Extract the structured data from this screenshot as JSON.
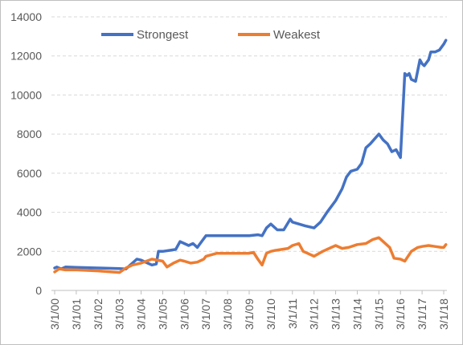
{
  "chart_data": {
    "type": "line",
    "title": "",
    "xlabel": "",
    "ylabel": "",
    "ylim": [
      0,
      14000
    ],
    "yticks": [
      0,
      2000,
      4000,
      6000,
      8000,
      10000,
      12000,
      14000
    ],
    "grid": "horizontal dashed",
    "legend_position": "top",
    "x_tick_labels": [
      "3/1/00",
      "3/1/01",
      "3/1/02",
      "3/1/03",
      "3/1/04",
      "3/1/05",
      "3/1/06",
      "3/1/07",
      "3/1/08",
      "3/1/09",
      "3/1/10",
      "3/1/11",
      "3/1/12",
      "3/1/13",
      "3/1/14",
      "3/1/15",
      "3/1/16",
      "3/1/17",
      "3/1/18"
    ],
    "x_unit": "years since 3/1/00",
    "series": [
      {
        "name": "Strongest",
        "color": "#4472c4",
        "x": [
          0,
          0.1,
          0.3,
          0.5,
          1.0,
          2.0,
          3.0,
          3.3,
          3.5,
          3.8,
          4.0,
          4.3,
          4.5,
          4.7,
          4.8,
          5.0,
          5.3,
          5.6,
          5.8,
          6.0,
          6.2,
          6.4,
          6.6,
          6.8,
          7.0,
          7.3,
          7.6,
          8.0,
          8.5,
          9.0,
          9.4,
          9.6,
          9.8,
          10.0,
          10.3,
          10.4,
          10.6,
          10.9,
          11.0,
          11.3,
          11.6,
          12.0,
          12.3,
          12.6,
          12.8,
          13.0,
          13.3,
          13.5,
          13.7,
          14.0,
          14.2,
          14.4,
          14.6,
          15.0,
          15.2,
          15.4,
          15.6,
          15.8,
          16.0,
          16.2,
          16.3,
          16.4,
          16.5,
          16.7,
          16.9,
          17.0,
          17.1,
          17.3,
          17.4,
          17.6,
          17.8,
          18.0,
          18.1
        ],
        "values": [
          1150,
          1200,
          1100,
          1200,
          1180,
          1150,
          1120,
          1100,
          1300,
          1600,
          1550,
          1400,
          1300,
          1350,
          2000,
          2000,
          2050,
          2100,
          2500,
          2400,
          2300,
          2400,
          2200,
          2500,
          2800,
          2800,
          2800,
          2800,
          2800,
          2800,
          2850,
          2800,
          3200,
          3400,
          3100,
          3100,
          3100,
          3650,
          3500,
          3400,
          3300,
          3200,
          3500,
          4000,
          4300,
          4600,
          5200,
          5800,
          6100,
          6200,
          6500,
          7300,
          7500,
          8000,
          7700,
          7500,
          7100,
          7200,
          6800,
          11100,
          11000,
          11100,
          10800,
          10700,
          11800,
          11600,
          11500,
          11800,
          12200,
          12200,
          12300,
          12600,
          12800
        ]
      },
      {
        "name": "Weakest",
        "color": "#ed7d31",
        "x": [
          0,
          0.2,
          0.5,
          1.0,
          2.0,
          3.0,
          3.3,
          3.6,
          4.0,
          4.5,
          5.0,
          5.2,
          5.5,
          5.8,
          6.0,
          6.3,
          6.6,
          6.9,
          7.0,
          7.5,
          8.0,
          8.5,
          9.0,
          9.2,
          9.4,
          9.6,
          9.8,
          10.0,
          10.2,
          10.5,
          10.8,
          11.0,
          11.3,
          11.5,
          11.7,
          12.0,
          12.4,
          12.8,
          13.0,
          13.3,
          13.6,
          14.0,
          14.4,
          14.7,
          15.0,
          15.2,
          15.5,
          15.7,
          16.0,
          16.2,
          16.5,
          16.8,
          17.0,
          17.3,
          17.6,
          17.9,
          18.0,
          18.1
        ],
        "values": [
          950,
          1100,
          1050,
          1050,
          1000,
          920,
          1150,
          1300,
          1400,
          1600,
          1500,
          1200,
          1400,
          1550,
          1500,
          1400,
          1450,
          1600,
          1750,
          1900,
          1900,
          1900,
          1900,
          1950,
          1600,
          1300,
          1900,
          2000,
          2050,
          2100,
          2150,
          2300,
          2400,
          2000,
          1900,
          1750,
          2000,
          2200,
          2300,
          2150,
          2200,
          2350,
          2400,
          2600,
          2700,
          2500,
          2200,
          1650,
          1600,
          1500,
          2000,
          2200,
          2250,
          2300,
          2250,
          2200,
          2200,
          2350
        ]
      }
    ]
  }
}
